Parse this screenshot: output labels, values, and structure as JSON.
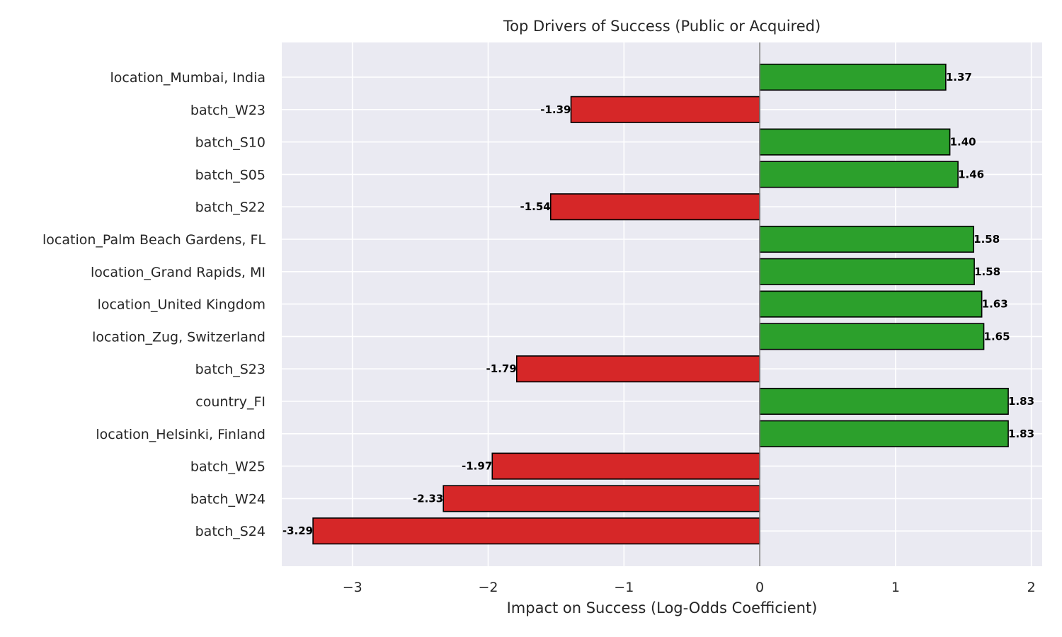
{
  "chart_data": {
    "type": "bar",
    "orientation": "horizontal",
    "title": "Top Drivers of Success (Public or Acquired)",
    "xlabel": "Impact on Success (Log-Odds Coefficient)",
    "ylabel": "",
    "xlim": [
      -3.52,
      2.08
    ],
    "x_ticks": [
      -3,
      -2,
      -1,
      0,
      1,
      2
    ],
    "x_tick_labels": [
      "−3",
      "−2",
      "−1",
      "0",
      "1",
      "2"
    ],
    "grid": true,
    "colors": {
      "positive": "#2ca02c",
      "negative": "#d62728",
      "background": "#eaeaf2",
      "zero_line": "#808080"
    },
    "categories": [
      "location_Mumbai, India",
      "batch_W23",
      "batch_S10",
      "batch_S05",
      "batch_S22",
      "location_Palm Beach Gardens, FL",
      "location_Grand Rapids, MI",
      "location_United Kingdom",
      "location_Zug, Switzerland",
      "batch_S23",
      "country_FI",
      "location_Helsinki, Finland",
      "batch_W25",
      "batch_W24",
      "batch_S24"
    ],
    "values": [
      1.37,
      -1.39,
      1.4,
      1.46,
      -1.54,
      1.575,
      1.58,
      1.635,
      1.65,
      -1.79,
      1.83,
      1.83,
      -1.97,
      -2.33,
      -3.29
    ],
    "value_labels": [
      "1.37",
      "-1.39",
      "1.40",
      "1.46",
      "-1.54",
      "1.58",
      "1.58",
      "1.63",
      "1.65",
      "-1.79",
      "1.83",
      "1.83",
      "-1.97",
      "-2.33",
      "-3.29"
    ]
  }
}
